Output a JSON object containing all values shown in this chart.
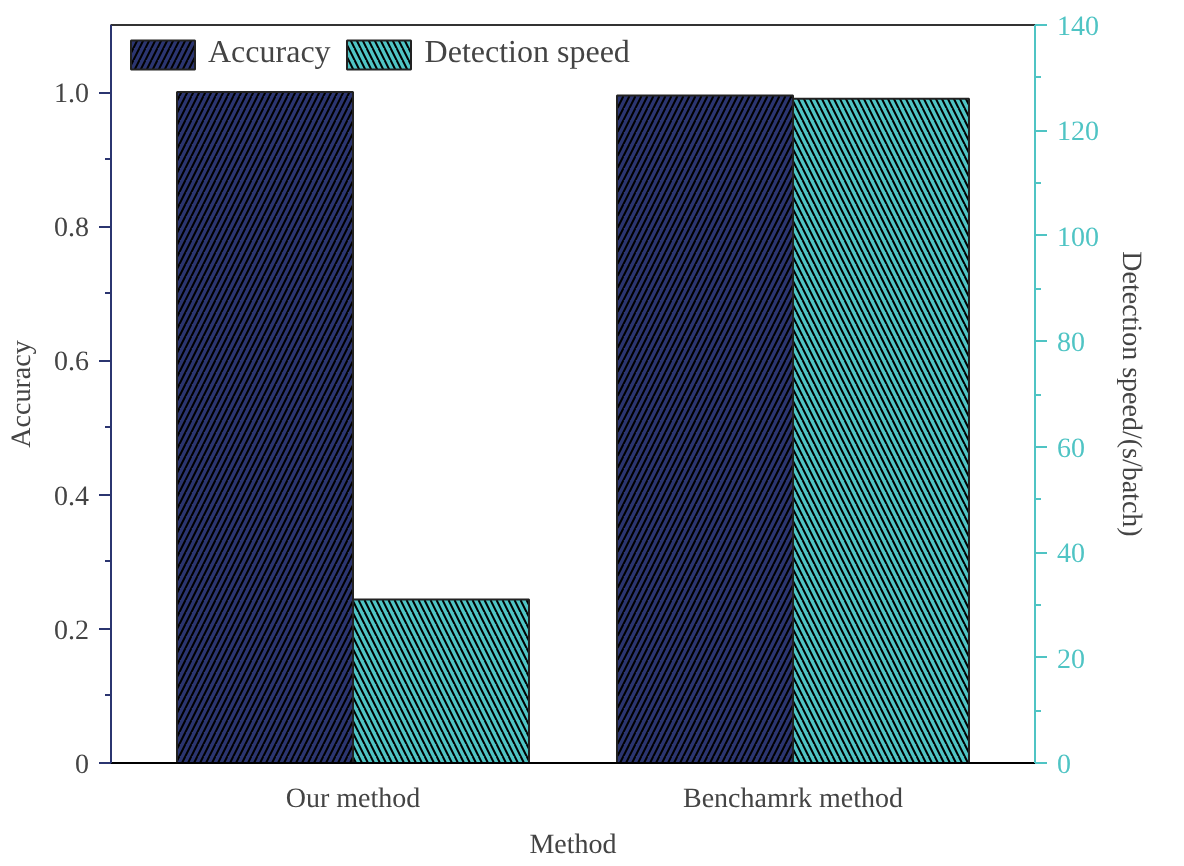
{
  "chart_data": {
    "type": "bar",
    "xlabel": "Method",
    "ylabel": "Accuracy",
    "y2label": "Detection speed/(s/batch)",
    "categories": [
      "Our method",
      "Benchamrk method"
    ],
    "series": [
      {
        "name": "Accuracy",
        "color": "#2b3570",
        "values": [
          1.0,
          0.995
        ]
      },
      {
        "name": "Detection speed",
        "color": "#4fc4c4",
        "values": [
          31,
          126
        ],
        "axis": "y2"
      }
    ],
    "ylim": [
      0,
      1.1
    ],
    "yticks": [
      0,
      0.2,
      0.4,
      0.6,
      0.8,
      {
        "value": 1.0,
        "label": "1.0"
      }
    ],
    "y2lim": [
      0,
      140
    ],
    "y2ticks": [
      0,
      20,
      40,
      60,
      80,
      100,
      120,
      140
    ],
    "legend": "top left",
    "grid": false
  }
}
